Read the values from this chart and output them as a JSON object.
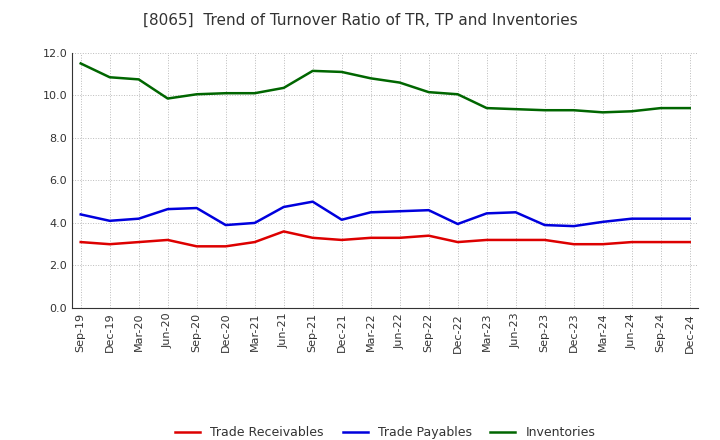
{
  "title": "[8065]  Trend of Turnover Ratio of TR, TP and Inventories",
  "x_labels": [
    "Sep-19",
    "Dec-19",
    "Mar-20",
    "Jun-20",
    "Sep-20",
    "Dec-20",
    "Mar-21",
    "Jun-21",
    "Sep-21",
    "Dec-21",
    "Mar-22",
    "Jun-22",
    "Sep-22",
    "Dec-22",
    "Mar-23",
    "Jun-23",
    "Sep-23",
    "Dec-23",
    "Mar-24",
    "Jun-24",
    "Sep-24",
    "Dec-24"
  ],
  "trade_receivables": [
    3.1,
    3.0,
    3.1,
    3.2,
    2.9,
    2.9,
    3.1,
    3.6,
    3.3,
    3.2,
    3.3,
    3.3,
    3.4,
    3.1,
    3.2,
    3.2,
    3.2,
    3.0,
    3.0,
    3.1,
    3.1,
    3.1
  ],
  "trade_payables": [
    4.4,
    4.1,
    4.2,
    4.65,
    4.7,
    3.9,
    4.0,
    4.75,
    5.0,
    4.15,
    4.5,
    4.55,
    4.6,
    3.95,
    4.45,
    4.5,
    3.9,
    3.85,
    4.05,
    4.2,
    4.2,
    4.2
  ],
  "inventories": [
    11.5,
    10.85,
    10.75,
    9.85,
    10.05,
    10.1,
    10.1,
    10.35,
    11.15,
    11.1,
    10.8,
    10.6,
    10.15,
    10.05,
    9.4,
    9.35,
    9.3,
    9.3,
    9.2,
    9.25,
    9.4,
    9.4
  ],
  "ylim": [
    0.0,
    12.0
  ],
  "yticks": [
    0.0,
    2.0,
    4.0,
    6.0,
    8.0,
    10.0,
    12.0
  ],
  "tr_color": "#dd0000",
  "tp_color": "#0000dd",
  "inv_color": "#006600",
  "tr_label": "Trade Receivables",
  "tp_label": "Trade Payables",
  "inv_label": "Inventories",
  "background_color": "#ffffff",
  "grid_color": "#bbbbbb",
  "title_fontsize": 11,
  "title_color": "#333333",
  "legend_fontsize": 9,
  "tick_fontsize": 8,
  "linewidth": 1.8
}
